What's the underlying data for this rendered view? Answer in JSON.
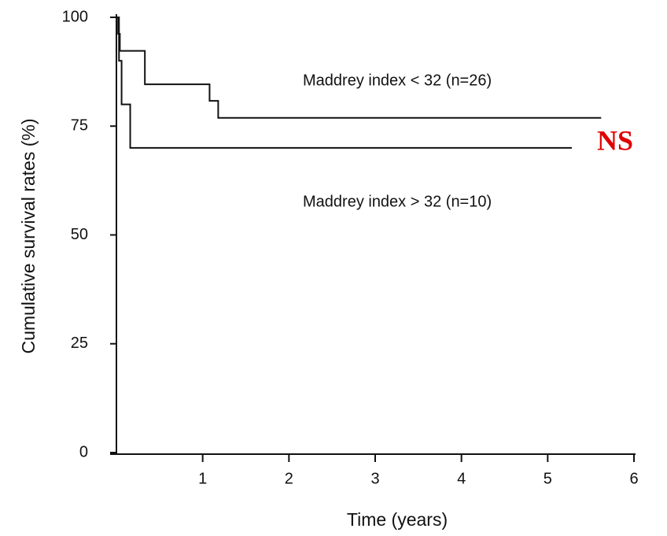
{
  "chart_data": {
    "type": "line",
    "step": true,
    "ylabel": "Cumulative survival rates (%)",
    "xlabel": "Time (years)",
    "annotation": "NS",
    "annotation_color": "#e00000",
    "xlim": [
      0,
      6
    ],
    "ylim": [
      0,
      100
    ],
    "xticks": [
      1,
      2,
      3,
      4,
      5,
      6
    ],
    "yticks": [
      0,
      25,
      50,
      75,
      100
    ],
    "series": [
      {
        "name": "Maddrey index < 32 (n=26)",
        "color": "#111111",
        "x": [
          0,
          0.02,
          0.04,
          0.33,
          1.08,
          1.18,
          5.62
        ],
        "values": [
          100,
          96.2,
          92.3,
          84.6,
          80.8,
          76.9,
          76.9
        ]
      },
      {
        "name": "Maddrey index > 32 (n=10)",
        "color": "#111111",
        "x": [
          0,
          0.03,
          0.06,
          0.16,
          5.28
        ],
        "values": [
          100,
          90,
          80,
          70,
          70
        ]
      }
    ]
  }
}
